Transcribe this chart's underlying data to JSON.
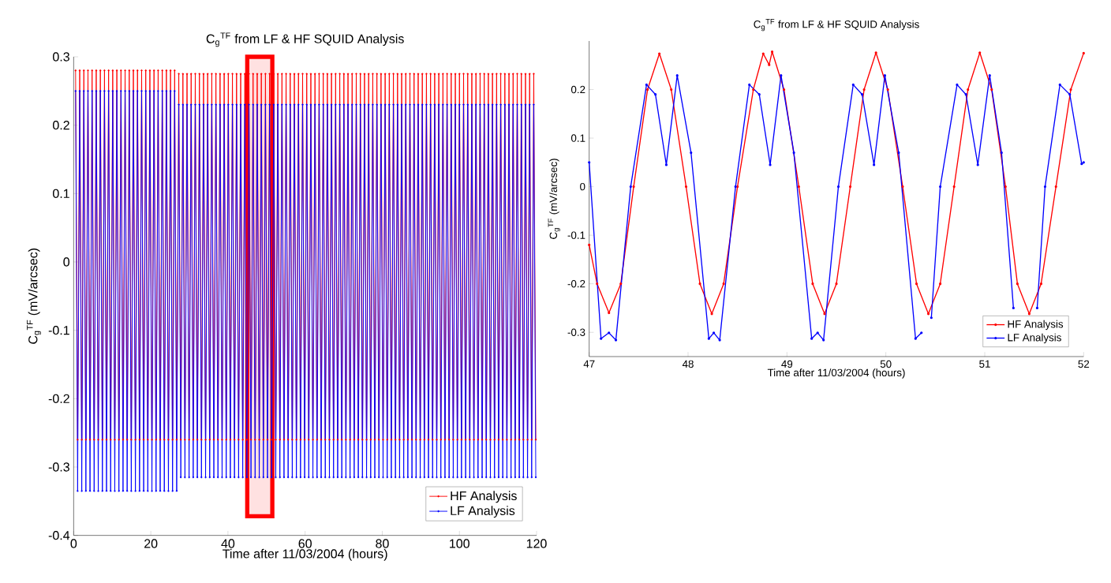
{
  "chart_data": [
    {
      "type": "line",
      "title": "C$_{g}$$^{TF}$ from LF & HF SQUID Analysis",
      "xlabel": "Time after 11/03/2004 (hours)",
      "ylabel": "C$_{g}$$^{TF}$ (mV/arcsec)",
      "x": [
        0.5,
        1.03,
        1.57,
        2.1,
        2.64,
        3.17,
        3.71,
        4.24,
        4.78,
        5.31,
        5.85,
        6.38,
        6.92,
        7.45,
        7.99,
        8.52,
        9.06,
        9.59,
        10.13,
        10.66,
        11.2,
        11.73,
        12.27,
        12.8,
        13.34,
        13.87,
        14.41,
        14.94,
        15.48,
        16.01,
        16.55,
        17.08,
        17.62,
        18.15,
        18.69,
        19.22,
        19.76,
        20.29,
        20.83,
        21.36,
        21.9,
        22.43,
        22.97,
        23.5,
        24.04,
        24.57,
        25.11,
        25.64,
        26.18,
        26.71,
        27.25,
        27.78,
        28.32,
        28.85,
        29.39,
        29.92,
        30.46,
        30.99,
        31.53,
        32.06,
        32.6,
        33.13,
        33.67,
        34.2,
        34.74,
        35.27,
        35.81,
        36.34,
        36.88,
        37.41,
        37.95,
        38.48,
        39.02,
        39.55,
        40.09,
        40.62,
        41.16,
        41.69,
        42.23,
        42.76,
        43.3,
        43.83,
        44.37,
        44.9,
        45.44,
        45.97,
        46.51,
        47.04,
        47.58,
        48.11,
        48.65,
        49.18,
        49.72,
        50.25,
        50.79,
        51.32,
        51.86,
        52.39,
        52.93,
        53.46,
        54,
        54.53,
        55.07,
        55.6,
        56.14,
        56.67,
        57.21,
        57.74,
        58.28,
        58.81,
        59.35,
        59.88,
        60.42,
        60.95,
        61.49,
        62.02,
        62.56,
        63.09,
        63.63,
        64.16,
        64.7,
        65.23,
        65.77,
        66.3,
        66.84,
        67.37,
        67.91,
        68.44,
        68.98,
        69.51,
        70.05,
        70.58,
        71.12,
        71.65,
        72.19,
        72.72,
        73.26,
        73.79,
        74.33,
        74.86,
        75.4,
        75.93,
        76.47,
        77,
        77.54,
        78.07,
        78.61,
        79.14,
        79.68,
        80.21,
        80.75,
        81.28,
        81.82,
        82.35,
        82.89,
        83.42,
        83.96,
        84.49,
        85.03,
        85.56,
        86.1,
        86.63,
        87.17,
        87.7,
        88.24,
        88.77,
        89.31,
        89.84,
        90.38,
        90.91,
        91.45,
        91.98,
        92.52,
        93.05,
        93.59,
        94.12,
        94.66,
        95.19,
        95.73,
        96.26,
        96.8,
        97.33,
        97.87,
        98.4,
        98.94,
        99.47,
        100.01,
        100.54,
        101.08,
        101.61,
        102.15,
        102.68,
        103.22,
        103.75,
        104.29,
        104.82,
        105.36,
        105.89,
        106.43,
        106.96,
        107.5,
        108.03,
        108.57,
        109.1,
        109.64,
        110.17,
        110.71,
        111.24,
        111.78,
        112.31,
        112.85,
        113.38,
        113.92,
        114.45,
        114.99,
        115.52,
        116.06,
        116.59,
        117.13,
        117.66,
        118.2,
        118.73,
        119.27,
        119.8
      ],
      "series": [
        {
          "name": "HF Analysis",
          "color": "#ff0000",
          "values": [
            0.28,
            -0.26,
            0.28,
            -0.26,
            0.28,
            -0.26,
            0.28,
            -0.26,
            0.28,
            -0.26,
            0.28,
            -0.26,
            0.28,
            -0.26,
            0.28,
            -0.26,
            0.28,
            -0.26,
            0.28,
            -0.26,
            0.28,
            -0.26,
            0.28,
            -0.26,
            0.28,
            -0.26,
            0.28,
            -0.26,
            0.28,
            -0.26,
            0.28,
            -0.26,
            0.28,
            -0.26,
            0.28,
            -0.26,
            0.28,
            -0.26,
            0.28,
            -0.26,
            0.28,
            -0.26,
            0.28,
            -0.26,
            0.28,
            -0.26,
            0.28,
            -0.26,
            0.28,
            -0.26,
            0.275,
            -0.26,
            0.275,
            -0.26,
            0.275,
            -0.26,
            0.275,
            -0.26,
            0.275,
            -0.26,
            0.275,
            -0.26,
            0.275,
            -0.26,
            0.275,
            -0.26,
            0.275,
            -0.26,
            0.275,
            -0.26,
            0.275,
            -0.26,
            0.275,
            -0.26,
            0.275,
            -0.26,
            0.275,
            -0.26,
            0.275,
            -0.26,
            0.275,
            -0.26,
            0.275,
            -0.26,
            0.275,
            -0.26,
            0.275,
            -0.26,
            0.275,
            -0.26,
            0.275,
            -0.26,
            0.275,
            -0.26,
            0.275,
            -0.26,
            0.275,
            -0.26,
            0.275,
            -0.26,
            0.275,
            -0.26,
            0.275,
            -0.26,
            0.275,
            -0.26,
            0.275,
            -0.26,
            0.275,
            -0.26,
            0.275,
            -0.26,
            0.275,
            -0.26,
            0.275,
            -0.26,
            0.275,
            -0.26,
            0.275,
            -0.26,
            0.275,
            -0.26,
            0.275,
            -0.26,
            0.275,
            -0.26,
            0.275,
            -0.26,
            0.275,
            -0.26,
            0.275,
            -0.26,
            0.275,
            -0.26,
            0.275,
            -0.26,
            0.275,
            -0.26,
            0.275,
            -0.26,
            0.275,
            -0.26,
            0.275,
            -0.26,
            0.275,
            -0.26,
            0.275,
            -0.26,
            0.275,
            -0.26,
            0.275,
            -0.26,
            0.275,
            -0.26,
            0.275,
            -0.26,
            0.275,
            -0.26,
            0.275,
            -0.26,
            0.275,
            -0.26,
            0.275,
            -0.26,
            0.275,
            -0.26,
            0.275,
            -0.26,
            0.275,
            -0.26,
            0.275,
            -0.26,
            0.275,
            -0.26,
            0.275,
            -0.26,
            0.275,
            -0.26,
            0.275,
            -0.26,
            0.275,
            -0.26,
            0.275,
            -0.26,
            0.275,
            -0.26,
            0.275,
            -0.26,
            0.275,
            -0.26,
            0.275,
            -0.26,
            0.275,
            -0.26,
            0.275,
            -0.26,
            0.275,
            -0.26,
            0.275,
            -0.26,
            0.275,
            -0.26,
            0.275,
            -0.26,
            0.275,
            -0.26,
            0.275,
            -0.26,
            0.275,
            -0.26,
            0.275,
            -0.26,
            0.275,
            -0.26,
            0.275,
            -0.26,
            0.275,
            -0.26,
            0.275,
            -0.26,
            0.275,
            -0.26,
            0.275,
            -0.26
          ]
        },
        {
          "name": "LF Analysis",
          "color": "#0000ff",
          "values": [
            0.25,
            -0.335,
            0.25,
            -0.335,
            0.25,
            -0.335,
            0.25,
            -0.335,
            0.25,
            -0.335,
            0.25,
            -0.335,
            0.25,
            -0.335,
            0.25,
            -0.335,
            0.25,
            -0.335,
            0.25,
            -0.335,
            0.25,
            -0.335,
            0.25,
            -0.335,
            0.25,
            -0.335,
            0.25,
            -0.335,
            0.25,
            -0.335,
            0.25,
            -0.335,
            0.25,
            -0.335,
            0.25,
            -0.335,
            0.25,
            -0.335,
            0.25,
            -0.335,
            0.25,
            -0.335,
            0.25,
            -0.335,
            0.25,
            -0.335,
            0.25,
            -0.335,
            0.25,
            -0.335,
            0.23,
            -0.315,
            0.23,
            -0.315,
            0.23,
            -0.315,
            0.23,
            -0.315,
            0.23,
            -0.315,
            0.23,
            -0.315,
            0.23,
            -0.315,
            0.23,
            -0.315,
            0.23,
            -0.315,
            0.23,
            -0.315,
            0.23,
            -0.315,
            0.23,
            -0.315,
            0.23,
            -0.315,
            0.23,
            -0.315,
            0.23,
            -0.315,
            0.23,
            -0.315,
            0.23,
            -0.315,
            0.23,
            -0.315,
            0.23,
            -0.315,
            0.23,
            -0.315,
            0.23,
            -0.315,
            0.23,
            -0.315,
            0.23,
            -0.315,
            0.23,
            -0.315,
            0.23,
            -0.315,
            0.23,
            -0.315,
            0.23,
            -0.315,
            0.23,
            -0.315,
            0.23,
            -0.315,
            0.23,
            -0.315,
            0.23,
            -0.315,
            0.23,
            -0.315,
            0.23,
            -0.315,
            0.23,
            -0.315,
            0.23,
            -0.315,
            0.23,
            -0.315,
            0.23,
            -0.315,
            0.23,
            -0.315,
            0.23,
            -0.315,
            0.23,
            -0.315,
            0.23,
            -0.315,
            0.23,
            -0.315,
            0.23,
            -0.315,
            0.23,
            -0.315,
            0.23,
            -0.315,
            0.23,
            -0.315,
            0.23,
            -0.315,
            0.23,
            -0.315,
            0.23,
            -0.315,
            0.23,
            -0.315,
            0.23,
            -0.315,
            0.23,
            -0.315,
            0.23,
            -0.315,
            0.23,
            -0.315,
            0.23,
            -0.315,
            0.23,
            -0.315,
            0.23,
            -0.315,
            0.23,
            -0.315,
            0.23,
            -0.315,
            0.23,
            -0.315,
            0.23,
            -0.315,
            0.23,
            -0.315,
            0.23,
            -0.315,
            0.23,
            -0.315,
            0.23,
            -0.315,
            0.23,
            -0.315,
            0.23,
            -0.315,
            0.23,
            -0.315,
            0.23,
            -0.315,
            0.23,
            -0.315,
            0.23,
            -0.315,
            0.23,
            -0.315,
            0.23,
            -0.315,
            0.23,
            -0.315,
            0.23,
            -0.315,
            0.23,
            -0.315,
            0.23,
            -0.315,
            0.23,
            -0.315,
            0.23,
            -0.315,
            0.23,
            -0.315,
            0.23,
            -0.315,
            0.23,
            -0.315,
            0.23,
            -0.315,
            0.23,
            -0.315,
            0.23,
            -0.315,
            0.23,
            -0.315,
            0.23,
            -0.315
          ]
        }
      ],
      "xlim": [
        0,
        120
      ],
      "ylim": [
        -0.4,
        0.3
      ],
      "xticks": [
        0,
        20,
        40,
        60,
        80,
        100,
        120
      ],
      "yticks": [
        -0.4,
        -0.3,
        -0.2,
        -0.1,
        0,
        0.1,
        0.2,
        0.3
      ],
      "bands": [
        {
          "axis": "x",
          "from": 45,
          "to": 51.5,
          "color": "#ff0000"
        }
      ],
      "legend": "bottom right",
      "marker": "circle",
      "line_style": "solid"
    },
    {
      "type": "line",
      "title": "C$_{g}$$^{TF}$ from LF & HF SQUID Analysis",
      "xlabel": "Time after 11/03/2004 (hours)",
      "ylabel": "C$_{g}$$^{TF}$ (mV/arcsec)",
      "series": [
        {
          "name": "HF Analysis",
          "color": "#ff0000",
          "x": [
            47,
            47.08,
            47.2,
            47.32,
            47.45,
            47.59,
            47.71,
            47.83,
            47.98,
            48.12,
            48.24,
            48.36,
            48.5,
            48.66,
            48.76,
            48.82,
            48.85,
            48.97,
            49.12,
            49.26,
            49.38,
            49.5,
            49.64,
            49.78,
            49.9,
            50.02,
            50.17,
            50.31,
            50.43,
            50.55,
            50.69,
            50.83,
            50.95,
            51.07,
            51.21,
            51.33,
            51.45,
            51.57,
            51.72,
            51.87,
            52
          ],
          "values": [
            -0.12,
            -0.2,
            -0.26,
            -0.2,
            0,
            0.2,
            0.274,
            0.2,
            0,
            -0.2,
            -0.262,
            -0.2,
            0,
            0.2,
            0.274,
            0.251,
            0.278,
            0.2,
            0,
            -0.2,
            -0.262,
            -0.2,
            0,
            0.2,
            0.276,
            0.2,
            0,
            -0.2,
            -0.262,
            -0.2,
            0,
            0.2,
            0.276,
            0.2,
            0,
            -0.2,
            -0.262,
            -0.2,
            0,
            0.2,
            0.275
          ]
        },
        {
          "name": "LF Analysis",
          "color": "#0000ff",
          "x": [
            47,
            47.12,
            47.2,
            47.27,
            47.42,
            47.58,
            47.67,
            47.78,
            47.89,
            48.03,
            48.21,
            48.26,
            48.32,
            48.48,
            48.62,
            48.72,
            48.83,
            48.94,
            49.07,
            49.25,
            49.31,
            49.37,
            49.52,
            49.67,
            49.76,
            49.88,
            49.99,
            50.13,
            50.3,
            50.36,
            50.42,
            50.46,
            50.55,
            50.72,
            50.81,
            50.93,
            51.05,
            51.17,
            51.29,
            51.4,
            51.53,
            51.61,
            51.76,
            51.86,
            51.98,
            52
          ],
          "values": [
            0.05,
            -0.313,
            -0.301,
            -0.316,
            0,
            0.21,
            0.19,
            0.045,
            0.229,
            0.07,
            -0.313,
            -0.301,
            -0.316,
            0,
            0.21,
            0.19,
            0.045,
            0.229,
            0.07,
            -0.313,
            -0.301,
            -0.316,
            0,
            0.21,
            0.19,
            0.045,
            0.229,
            0.07,
            -0.313,
            -0.301,
            null,
            -0.27,
            0,
            0.21,
            0.19,
            0.045,
            0.229,
            0.07,
            -0.25,
            null,
            -0.25,
            0,
            0.21,
            0.19,
            0.047,
            0.05
          ]
        }
      ],
      "xlim": [
        47,
        52
      ],
      "ylim": [
        -0.35,
        0.3
      ],
      "xticks": [
        47,
        48,
        49,
        50,
        51,
        52
      ],
      "yticks": [
        -0.3,
        -0.2,
        -0.1,
        0,
        0.1,
        0.2
      ],
      "legend": "bottom right",
      "marker": "circle",
      "line_style": "solid"
    }
  ]
}
